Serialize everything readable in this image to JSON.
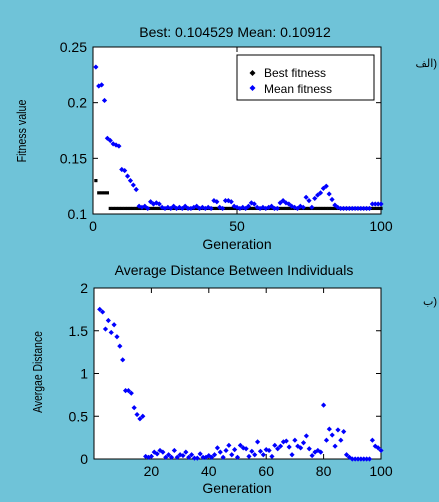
{
  "figure": {
    "background": "#6fc3d8",
    "panel_labels": [
      "الف)",
      "ب)"
    ]
  },
  "chart_data": [
    {
      "type": "scatter",
      "title": "Best: 0.104529 Mean: 0.10912",
      "xlabel": "Generation",
      "ylabel": "Fitness value",
      "xlim": [
        0,
        100
      ],
      "ylim": [
        0.1,
        0.25
      ],
      "xticks": [
        0,
        50,
        100
      ],
      "yticks": [
        0.1,
        0.15,
        0.2,
        0.25
      ],
      "grid": false,
      "legend": {
        "placement": "top-right"
      },
      "series": [
        {
          "name": "Best fitness",
          "color": "#000000",
          "marker": "dot",
          "x": [
            1,
            2,
            3,
            4,
            5,
            6,
            7,
            8,
            9,
            10,
            11,
            12,
            13,
            14,
            15,
            16,
            17,
            18,
            19,
            20,
            21,
            22,
            23,
            24,
            25,
            26,
            27,
            28,
            29,
            30,
            31,
            32,
            33,
            34,
            35,
            36,
            37,
            38,
            39,
            40,
            41,
            42,
            43,
            44,
            45,
            46,
            47,
            48,
            49,
            50,
            51,
            52,
            53,
            54,
            55,
            56,
            57,
            58,
            59,
            60,
            61,
            62,
            63,
            64,
            65,
            66,
            67,
            68,
            69,
            70,
            71,
            72,
            73,
            74,
            75,
            76,
            77,
            78,
            79,
            80,
            81,
            82,
            83,
            84,
            85,
            86,
            87,
            88,
            89,
            90,
            91,
            92,
            93,
            94,
            95,
            96,
            97,
            98,
            99,
            100
          ],
          "y": [
            0.13,
            0.119,
            0.119,
            0.119,
            0.119,
            0.105,
            0.105,
            0.105,
            0.105,
            0.105,
            0.105,
            0.105,
            0.105,
            0.105,
            0.105,
            0.105,
            0.105,
            0.105,
            0.105,
            0.105,
            0.105,
            0.105,
            0.105,
            0.105,
            0.105,
            0.105,
            0.105,
            0.105,
            0.105,
            0.105,
            0.105,
            0.105,
            0.105,
            0.105,
            0.105,
            0.105,
            0.105,
            0.105,
            0.105,
            0.105,
            0.105,
            0.105,
            0.105,
            0.105,
            0.105,
            0.105,
            0.105,
            0.105,
            0.105,
            0.105,
            0.105,
            0.105,
            0.105,
            0.105,
            0.105,
            0.105,
            0.105,
            0.105,
            0.105,
            0.105,
            0.105,
            0.105,
            0.105,
            0.105,
            0.105,
            0.105,
            0.105,
            0.105,
            0.105,
            0.105,
            0.105,
            0.105,
            0.105,
            0.105,
            0.105,
            0.105,
            0.105,
            0.105,
            0.105,
            0.105,
            0.105,
            0.105,
            0.105,
            0.105,
            0.105,
            0.105,
            0.105,
            0.105,
            0.105,
            0.105,
            0.105,
            0.105,
            0.105,
            0.105,
            0.105,
            0.105,
            0.105,
            0.105,
            0.105,
            0.105
          ]
        },
        {
          "name": "Mean fitness",
          "color": "#0000ff",
          "marker": "diamond",
          "x": [
            1,
            2,
            3,
            4,
            5,
            6,
            7,
            8,
            9,
            10,
            11,
            12,
            13,
            14,
            15,
            16,
            17,
            18,
            19,
            20,
            21,
            22,
            23,
            24,
            25,
            26,
            27,
            28,
            29,
            30,
            31,
            32,
            33,
            34,
            35,
            36,
            37,
            38,
            39,
            40,
            41,
            42,
            43,
            44,
            45,
            46,
            47,
            48,
            49,
            50,
            51,
            52,
            53,
            54,
            55,
            56,
            57,
            58,
            59,
            60,
            61,
            62,
            63,
            64,
            65,
            66,
            67,
            68,
            69,
            70,
            71,
            72,
            73,
            74,
            75,
            76,
            77,
            78,
            79,
            80,
            81,
            82,
            83,
            84,
            85,
            86,
            87,
            88,
            89,
            90,
            91,
            92,
            93,
            94,
            95,
            96,
            97,
            98,
            99,
            100
          ],
          "y": [
            0.232,
            0.215,
            0.216,
            0.202,
            0.168,
            0.166,
            0.163,
            0.162,
            0.161,
            0.14,
            0.139,
            0.134,
            0.13,
            0.126,
            0.122,
            0.107,
            0.106,
            0.107,
            0.105,
            0.111,
            0.109,
            0.11,
            0.109,
            0.106,
            0.105,
            0.106,
            0.105,
            0.107,
            0.105,
            0.106,
            0.105,
            0.107,
            0.105,
            0.105,
            0.106,
            0.107,
            0.105,
            0.106,
            0.105,
            0.106,
            0.105,
            0.112,
            0.111,
            0.106,
            0.105,
            0.112,
            0.112,
            0.111,
            0.107,
            0.106,
            0.105,
            0.106,
            0.105,
            0.107,
            0.11,
            0.109,
            0.106,
            0.105,
            0.106,
            0.105,
            0.106,
            0.107,
            0.105,
            0.105,
            0.11,
            0.112,
            0.11,
            0.109,
            0.107,
            0.106,
            0.105,
            0.107,
            0.106,
            0.115,
            0.112,
            0.106,
            0.114,
            0.117,
            0.119,
            0.123,
            0.125,
            0.118,
            0.113,
            0.108,
            0.106,
            0.105,
            0.105,
            0.105,
            0.105,
            0.105,
            0.105,
            0.105,
            0.105,
            0.105,
            0.105,
            0.105,
            0.109,
            0.109,
            0.109,
            0.109
          ]
        }
      ]
    },
    {
      "type": "scatter",
      "title": "Average Distance Between Individuals",
      "xlabel": "Generation",
      "ylabel": "Avergae Distance",
      "xlim": [
        0,
        100
      ],
      "ylim": [
        0,
        2
      ],
      "xticks": [
        20,
        40,
        60,
        80,
        100
      ],
      "yticks": [
        0,
        0.5,
        1,
        1.5,
        2
      ],
      "grid": false,
      "series": [
        {
          "color": "#0000ff",
          "marker": "diamond",
          "x": [
            2,
            3,
            4,
            5,
            6,
            7,
            8,
            9,
            10,
            11,
            12,
            13,
            14,
            15,
            16,
            17,
            18,
            19,
            20,
            21,
            22,
            23,
            24,
            25,
            26,
            27,
            28,
            29,
            30,
            31,
            32,
            33,
            34,
            35,
            36,
            37,
            38,
            39,
            40,
            41,
            42,
            43,
            44,
            45,
            46,
            47,
            48,
            49,
            50,
            51,
            52,
            53,
            54,
            55,
            56,
            57,
            58,
            59,
            60,
            61,
            62,
            63,
            64,
            65,
            66,
            67,
            68,
            69,
            70,
            71,
            72,
            73,
            74,
            75,
            76,
            77,
            78,
            79,
            80,
            81,
            82,
            83,
            84,
            85,
            86,
            87,
            88,
            89,
            90,
            91,
            92,
            93,
            94,
            95,
            96,
            97,
            98,
            99,
            100
          ],
          "y": [
            1.75,
            1.72,
            1.52,
            1.62,
            1.48,
            1.57,
            1.43,
            1.32,
            1.16,
            0.8,
            0.8,
            0.77,
            0.6,
            0.52,
            0.47,
            0.5,
            0.03,
            0.02,
            0.03,
            0.08,
            0.06,
            0.1,
            0.08,
            0.02,
            0.05,
            0.02,
            0.1,
            0.02,
            0.05,
            0.04,
            0.08,
            0.02,
            0.05,
            0.01,
            0.01,
            0.06,
            0.02,
            0.02,
            0.04,
            0.02,
            0.05,
            0.13,
            0.08,
            0.02,
            0.1,
            0.16,
            0.05,
            0.11,
            0.02,
            0.16,
            0.13,
            0.12,
            0.03,
            0.09,
            0.05,
            0.2,
            0.09,
            0.05,
            0.11,
            0.1,
            0.03,
            0.16,
            0.12,
            0.15,
            0.2,
            0.21,
            0.14,
            0.05,
            0.22,
            0.15,
            0.13,
            0.19,
            0.27,
            0.12,
            0.04,
            0.08,
            0.1,
            0.08,
            0.63,
            0.22,
            0.35,
            0.28,
            0.15,
            0.34,
            0.22,
            0.32,
            0.05,
            0.02,
            0.0,
            0.0,
            0.0,
            0.0,
            0.0,
            0.0,
            0.0,
            0.22,
            0.15,
            0.13,
            0.1
          ]
        }
      ]
    }
  ]
}
